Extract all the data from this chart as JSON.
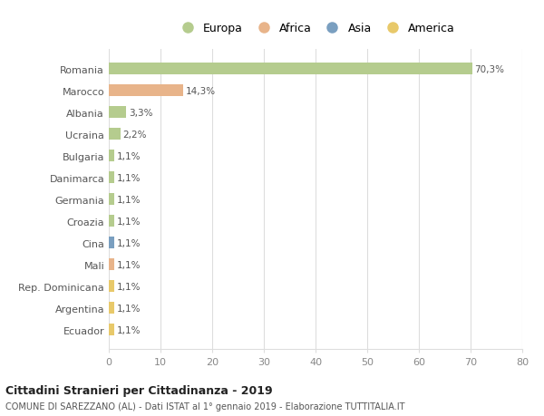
{
  "categories": [
    "Romania",
    "Marocco",
    "Albania",
    "Ucraina",
    "Bulgaria",
    "Danimarca",
    "Germania",
    "Croazia",
    "Cina",
    "Mali",
    "Rep. Dominicana",
    "Argentina",
    "Ecuador"
  ],
  "values": [
    70.3,
    14.3,
    3.3,
    2.2,
    1.1,
    1.1,
    1.1,
    1.1,
    1.1,
    1.1,
    1.1,
    1.1,
    1.1
  ],
  "labels": [
    "70,3%",
    "14,3%",
    "3,3%",
    "2,2%",
    "1,1%",
    "1,1%",
    "1,1%",
    "1,1%",
    "1,1%",
    "1,1%",
    "1,1%",
    "1,1%",
    "1,1%"
  ],
  "colors": [
    "#b5cc8e",
    "#e8b48a",
    "#b5cc8e",
    "#b5cc8e",
    "#b5cc8e",
    "#b5cc8e",
    "#b5cc8e",
    "#b5cc8e",
    "#7a9fc0",
    "#e8b48a",
    "#e8c96a",
    "#e8c96a",
    "#e8c96a"
  ],
  "legend": [
    {
      "label": "Europa",
      "color": "#b5cc8e"
    },
    {
      "label": "Africa",
      "color": "#e8b48a"
    },
    {
      "label": "Asia",
      "color": "#7a9fc0"
    },
    {
      "label": "America",
      "color": "#e8c96a"
    }
  ],
  "xlim": [
    0,
    80
  ],
  "xticks": [
    0,
    10,
    20,
    30,
    40,
    50,
    60,
    70,
    80
  ],
  "title": "Cittadini Stranieri per Cittadinanza - 2019",
  "subtitle": "COMUNE DI SAREZZANO (AL) - Dati ISTAT al 1° gennaio 2019 - Elaborazione TUTTITALIA.IT",
  "background_color": "#ffffff",
  "grid_color": "#dddddd",
  "bar_height": 0.55
}
